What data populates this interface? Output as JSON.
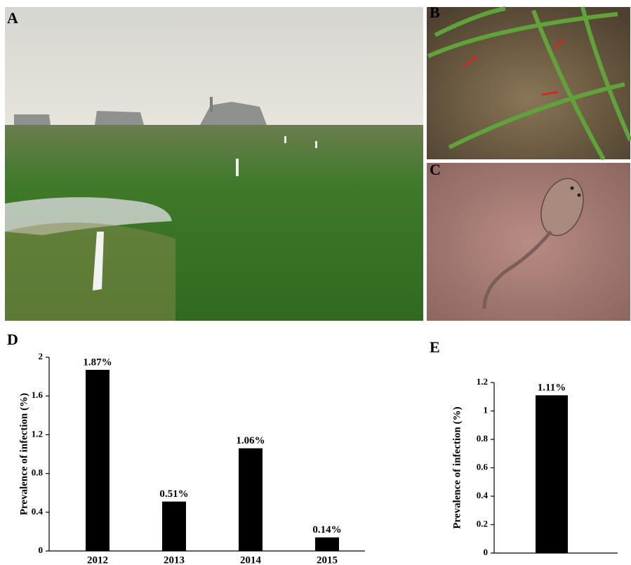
{
  "panel_labels": [
    "A",
    "B",
    "C",
    "D",
    "E"
  ],
  "chart_data": [
    {
      "type": "bar",
      "ylabel": "Prevalence of infection (%)",
      "categories": [
        "2012",
        "2013",
        "2014",
        "2015"
      ],
      "values": [
        1.87,
        0.51,
        1.06,
        0.14
      ],
      "value_labels": [
        "1.87%",
        "0.51%",
        "1.06%",
        "0.14%"
      ],
      "color": "#000000",
      "ylim": [
        0,
        2
      ],
      "yticks": [
        0,
        0.4,
        0.8,
        1.2,
        1.6,
        2
      ]
    },
    {
      "type": "bar",
      "ylabel": "Prevalence of infection (%)",
      "categories": [
        null
      ],
      "values": [
        1.11
      ],
      "value_labels": [
        "1.11%"
      ],
      "color": "#000000",
      "ylim": [
        0,
        1.2
      ],
      "yticks": [
        0,
        0.2,
        0.4,
        0.6,
        0.8,
        1,
        1.2
      ]
    }
  ]
}
